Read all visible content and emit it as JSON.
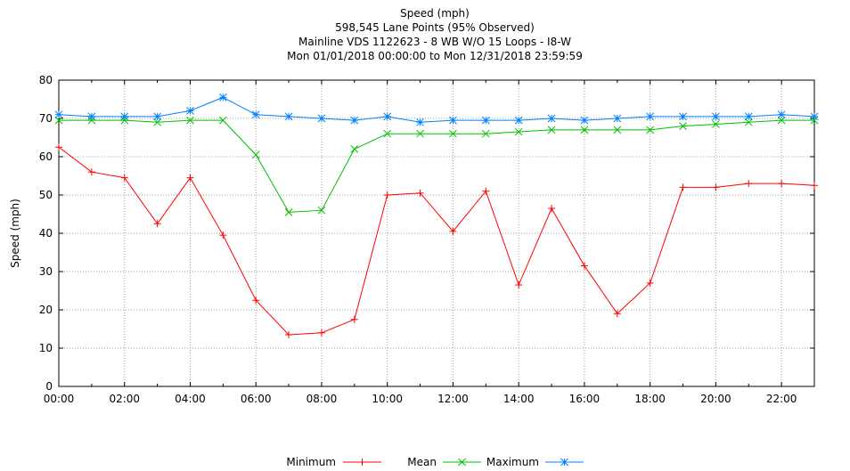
{
  "chart_data": {
    "type": "line",
    "title_lines": [
      "Speed (mph)",
      "598,545 Lane Points (95% Observed)",
      "Mainline VDS 1122623 - 8 WB W/O 15 Loops - I8-W",
      "Mon 01/01/2018 00:00:00 to Mon 12/31/2018 23:59:59"
    ],
    "ylabel": "Speed (mph)",
    "xlabel": "",
    "ylim": [
      0,
      80
    ],
    "yticks": [
      0,
      10,
      20,
      30,
      40,
      50,
      60,
      70,
      80
    ],
    "xlim": [
      0,
      23
    ],
    "xticks": [
      {
        "x": 0,
        "label": "00:00"
      },
      {
        "x": 2,
        "label": "02:00"
      },
      {
        "x": 4,
        "label": "04:00"
      },
      {
        "x": 6,
        "label": "06:00"
      },
      {
        "x": 8,
        "label": "08:00"
      },
      {
        "x": 10,
        "label": "10:00"
      },
      {
        "x": 12,
        "label": "12:00"
      },
      {
        "x": 14,
        "label": "14:00"
      },
      {
        "x": 16,
        "label": "16:00"
      },
      {
        "x": 18,
        "label": "18:00"
      },
      {
        "x": 20,
        "label": "20:00"
      },
      {
        "x": 22,
        "label": "22:00"
      }
    ],
    "grid": true,
    "legend_position": "bottom",
    "x": [
      0,
      1,
      2,
      3,
      4,
      5,
      6,
      7,
      8,
      9,
      10,
      11,
      12,
      13,
      14,
      15,
      16,
      17,
      18,
      19,
      20,
      21,
      22,
      23
    ],
    "series": [
      {
        "name": "Minimum",
        "color": "#ff0000",
        "marker": "plus",
        "values": [
          62.5,
          56,
          54.5,
          42.5,
          54.5,
          39.5,
          22.5,
          13.5,
          14,
          17.5,
          50,
          50.5,
          40.5,
          51,
          26.5,
          46.5,
          31.5,
          19,
          27,
          52,
          52,
          53,
          53,
          52.5
        ]
      },
      {
        "name": "Mean",
        "color": "#00c000",
        "marker": "x",
        "values": [
          69.5,
          69.5,
          69.5,
          69,
          69.5,
          69.5,
          60.5,
          45.5,
          46,
          62,
          66,
          66,
          66,
          66,
          66.5,
          67,
          67,
          67,
          67,
          68,
          68.5,
          69,
          69.5,
          69.5
        ]
      },
      {
        "name": "Maximum",
        "color": "#0080ff",
        "marker": "star",
        "values": [
          71,
          70.5,
          70.5,
          70.5,
          72,
          75.5,
          71,
          70.5,
          70,
          69.5,
          70.5,
          69,
          69.5,
          69.5,
          69.5,
          70,
          69.5,
          70,
          70.5,
          70.5,
          70.5,
          70.5,
          71,
          70.5
        ]
      }
    ]
  }
}
